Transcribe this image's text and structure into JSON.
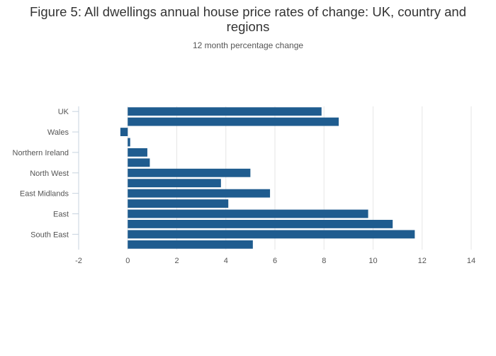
{
  "colors": {
    "bar": "#1f5c8f",
    "grid": "#e6e6e6",
    "axis": "#c7d3df",
    "text": "#555555",
    "title": "#333333"
  },
  "chart_data": {
    "type": "bar",
    "orientation": "horizontal",
    "title": "Figure 5: All dwellings annual house price rates of change: UK, country and regions",
    "subtitle": "12 month percentage change",
    "xlabel": "",
    "ylabel": "",
    "xlim": [
      -2,
      14
    ],
    "x_ticks": [
      -2,
      0,
      2,
      4,
      6,
      8,
      10,
      12,
      14
    ],
    "grid": true,
    "legend": "none",
    "categories": [
      "UK",
      "",
      "Wales",
      "",
      "Northern Ireland",
      "",
      "North West",
      "",
      "East Midlands",
      "",
      "East",
      "",
      "South East",
      ""
    ],
    "values": [
      7.9,
      8.6,
      -0.3,
      0.1,
      0.8,
      0.9,
      5.0,
      3.8,
      5.8,
      4.1,
      9.8,
      10.8,
      11.7,
      5.1
    ]
  }
}
